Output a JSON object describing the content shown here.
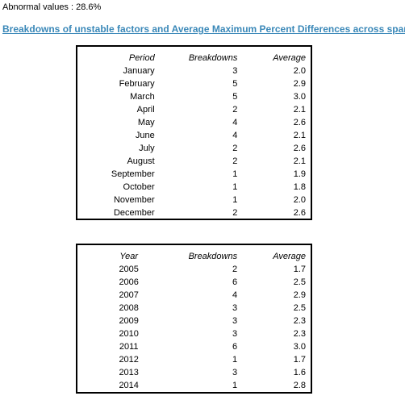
{
  "summary": {
    "label": "Abnormal values : 28.6%"
  },
  "heading": {
    "title": "Breakdowns of unstable factors and Average Maximum Percent Differences across spans"
  },
  "monthly_table": {
    "headers": [
      "Period",
      "Breakdowns",
      "Average"
    ],
    "rows": [
      {
        "period": "January",
        "breakdowns": "3",
        "average": "2.0"
      },
      {
        "period": "February",
        "breakdowns": "5",
        "average": "2.9"
      },
      {
        "period": "March",
        "breakdowns": "5",
        "average": "3.0"
      },
      {
        "period": "April",
        "breakdowns": "2",
        "average": "2.1"
      },
      {
        "period": "May",
        "breakdowns": "4",
        "average": "2.6"
      },
      {
        "period": "June",
        "breakdowns": "4",
        "average": "2.1"
      },
      {
        "period": "July",
        "breakdowns": "2",
        "average": "2.6"
      },
      {
        "period": "August",
        "breakdowns": "2",
        "average": "2.1"
      },
      {
        "period": "September",
        "breakdowns": "1",
        "average": "1.9"
      },
      {
        "period": "October",
        "breakdowns": "1",
        "average": "1.8"
      },
      {
        "period": "November",
        "breakdowns": "1",
        "average": "2.0"
      },
      {
        "period": "December",
        "breakdowns": "2",
        "average": "2.6"
      }
    ]
  },
  "yearly_table": {
    "headers": [
      "Year",
      "Breakdowns",
      "Average"
    ],
    "rows": [
      {
        "year": "2005",
        "breakdowns": "2",
        "average": "1.7"
      },
      {
        "year": "2006",
        "breakdowns": "6",
        "average": "2.5"
      },
      {
        "year": "2007",
        "breakdowns": "4",
        "average": "2.9"
      },
      {
        "year": "2008",
        "breakdowns": "3",
        "average": "2.5"
      },
      {
        "year": "2009",
        "breakdowns": "3",
        "average": "2.3"
      },
      {
        "year": "2010",
        "breakdowns": "3",
        "average": "2.3"
      },
      {
        "year": "2011",
        "breakdowns": "6",
        "average": "3.0"
      },
      {
        "year": "2012",
        "breakdowns": "1",
        "average": "1.7"
      },
      {
        "year": "2013",
        "breakdowns": "3",
        "average": "1.6"
      },
      {
        "year": "2014",
        "breakdowns": "1",
        "average": "2.8"
      }
    ]
  },
  "colors": {
    "link": "#3a88b8",
    "border": "#000000",
    "text": "#000000",
    "background": "#ffffff"
  }
}
